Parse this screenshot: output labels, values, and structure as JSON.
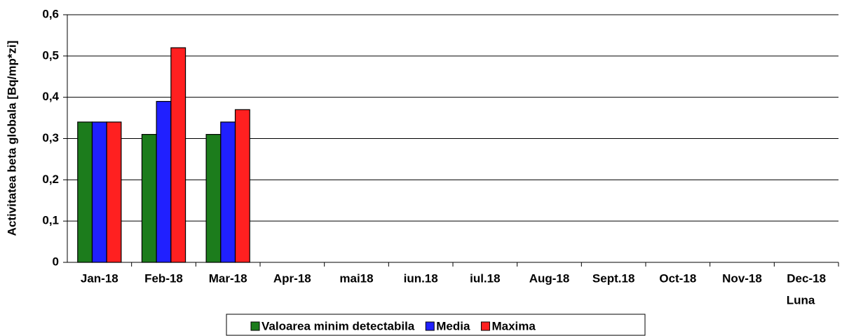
{
  "chart_data": {
    "type": "bar",
    "y_label": "Activitatea beta globala [Bq/mp*zi]",
    "x_label": "Luna",
    "categories": [
      "Jan-18",
      "Feb-18",
      "Mar-18",
      "Apr-18",
      "mai18",
      "iun.18",
      "iul.18",
      "Aug-18",
      "Sept.18",
      "Oct-18",
      "Nov-18",
      "Dec-18"
    ],
    "series": [
      {
        "name": "Valoarea minim detectabila",
        "color": "#1c7c1c",
        "values": [
          0.34,
          0.31,
          0.31,
          null,
          null,
          null,
          null,
          null,
          null,
          null,
          null,
          null
        ]
      },
      {
        "name": "Media",
        "color": "#2020ff",
        "values": [
          0.34,
          0.39,
          0.34,
          null,
          null,
          null,
          null,
          null,
          null,
          null,
          null,
          null
        ]
      },
      {
        "name": "Maxima",
        "color": "#ff2020",
        "values": [
          0.34,
          0.52,
          0.37,
          null,
          null,
          null,
          null,
          null,
          null,
          null,
          null,
          null
        ]
      }
    ],
    "ylim": [
      0,
      0.6
    ],
    "yticks": [
      0,
      {
        "value": 0.1,
        "label": "0,1"
      },
      {
        "value": 0.2,
        "label": "0,2"
      },
      {
        "value": 0.3,
        "label": "0,3"
      },
      {
        "value": 0.4,
        "label": "0,4"
      },
      {
        "value": 0.5,
        "label": "0,5"
      },
      {
        "value": 0.6,
        "label": "0,6"
      }
    ],
    "grid": true,
    "legend": "bottom"
  }
}
